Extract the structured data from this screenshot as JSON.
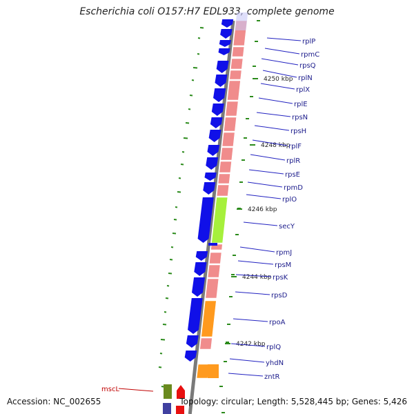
{
  "title": "Escherichia coli O157:H7 EDL933, complete genome",
  "footer": {
    "accession": "Accession: NC_002655",
    "summary": "Topology: circular; Length: 5,528,445 bp; Genes: 5,426"
  },
  "colors": {
    "backbone": "#7a7a7a",
    "cds_forward": "#1010e8",
    "ribosomal": "#f08c8c",
    "secY": "#a6f03c",
    "rpoA": "#ff9a1e",
    "zntR": "#ff9a1e",
    "label_line": "#2020c0",
    "gc_tick": "#2a8a1a",
    "mscL_label": "#c00000"
  },
  "ticks": [
    "4250 kbp",
    "4248 kbp",
    "4246 kbp",
    "4244 kbp",
    "4242 kbp"
  ],
  "genes": [
    "rplP",
    "rpmC",
    "rpsQ",
    "rplN",
    "rplX",
    "rplE",
    "rpsN",
    "rpsH",
    "rplF",
    "rplR",
    "rpsE",
    "rpmD",
    "rplO",
    "secY",
    "rpmJ",
    "rpsM",
    "rpsK",
    "rpsD",
    "rpoA",
    "rplQ",
    "yhdN",
    "zntR"
  ],
  "left_gene": "mscL"
}
